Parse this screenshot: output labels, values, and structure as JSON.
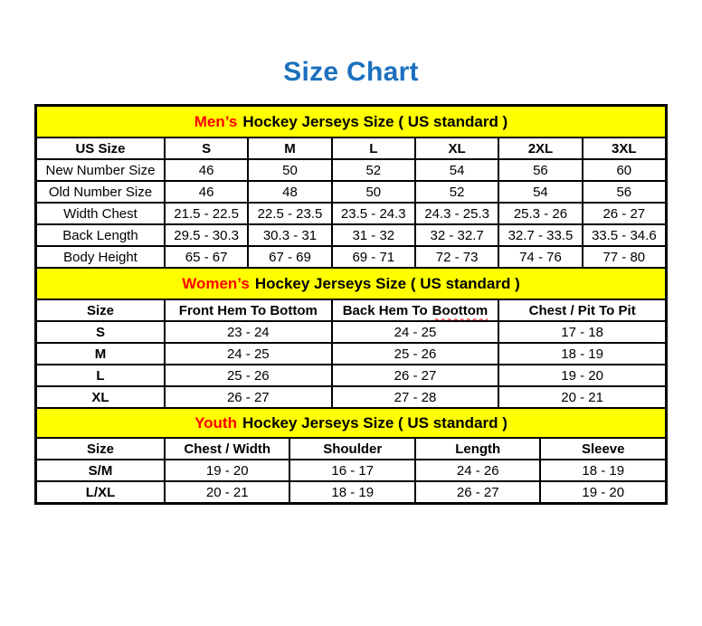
{
  "page": {
    "title": "Size Chart"
  },
  "colors": {
    "title_blue": "#1b70be",
    "section_yellow": "#ffff00",
    "accent_red": "#ff0000",
    "text_black": "#000000",
    "background": "#ffffff"
  },
  "mens": {
    "section_title": {
      "group": "Men’s",
      "rest": "Hockey Jerseys Size ( US standard )"
    },
    "col_headers": [
      "US Size",
      "S",
      "M",
      "L",
      "XL",
      "2XL",
      "3XL"
    ],
    "rows": [
      {
        "label": "New Number Size",
        "v": [
          "46",
          "50",
          "52",
          "54",
          "56",
          "60"
        ]
      },
      {
        "label": "Old Number Size",
        "v": [
          "46",
          "48",
          "50",
          "52",
          "54",
          "56"
        ]
      },
      {
        "label": "Width Chest",
        "v": [
          "21.5 - 22.5",
          "22.5 - 23.5",
          "23.5 - 24.3",
          "24.3 - 25.3",
          "25.3 - 26",
          "26 - 27"
        ]
      },
      {
        "label": "Back Length",
        "v": [
          "29.5 - 30.3",
          "30.3 - 31",
          "31 - 32",
          "32 - 32.7",
          "32.7 - 33.5",
          "33.5 - 34.6"
        ]
      },
      {
        "label": "Body Height",
        "v": [
          "65 - 67",
          "67 - 69",
          "69 - 71",
          "72 - 73",
          "74 - 76",
          "77 - 80"
        ]
      }
    ]
  },
  "womens": {
    "section_title": {
      "group": "Women’s",
      "rest": "Hockey Jerseys Size ( US standard )"
    },
    "col_headers": {
      "c0": "Size",
      "c1": "Front Hem To Bottom",
      "c2_prefix": "Back Hem To",
      "c2_misspelled": "Boottom",
      "c3": "Chest / Pit To Pit"
    },
    "rows": [
      {
        "label": "S",
        "v": [
          "23 - 24",
          "24 - 25",
          "17 - 18"
        ]
      },
      {
        "label": "M",
        "v": [
          "24 - 25",
          "25 - 26",
          "18 - 19"
        ]
      },
      {
        "label": "L",
        "v": [
          "25 - 26",
          "26 - 27",
          "19 - 20"
        ]
      },
      {
        "label": "XL",
        "v": [
          "26 - 27",
          "27 - 28",
          "20 - 21"
        ]
      }
    ]
  },
  "youth": {
    "section_title": {
      "group": "Youth",
      "rest": "Hockey Jerseys Size ( US standard )"
    },
    "col_headers": [
      "Size",
      "Chest / Width",
      "Shoulder",
      "Length",
      "Sleeve"
    ],
    "rows": [
      {
        "label": "S/M",
        "v": [
          "19 - 20",
          "16 - 17",
          "24 - 26",
          "18 - 19"
        ]
      },
      {
        "label": "L/XL",
        "v": [
          "20 - 21",
          "18 - 19",
          "26 - 27",
          "19 - 20"
        ]
      }
    ]
  }
}
